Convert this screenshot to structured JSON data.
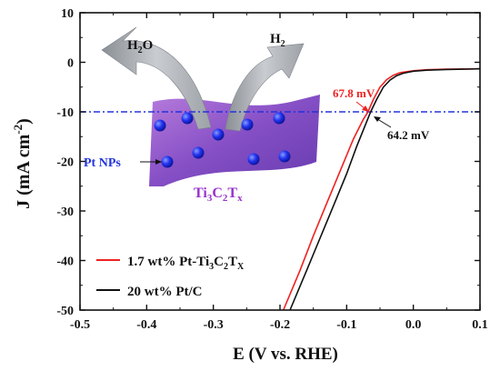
{
  "chart_data": {
    "type": "line",
    "xlabel": "E (V vs. RHE)",
    "ylabel": "J (mA cm",
    "ylabel_sup": "-2",
    "ylabel_close": ")",
    "xlim": [
      -0.5,
      0.1
    ],
    "ylim": [
      -50,
      10
    ],
    "xticks": [
      -0.5,
      -0.4,
      -0.3,
      -0.2,
      -0.1,
      0.0,
      0.1
    ],
    "xtick_labels": [
      "-0.5",
      "-0.4",
      "-0.3",
      "-0.2",
      "-0.1",
      "0.0",
      "0.1"
    ],
    "yticks": [
      10,
      0,
      -10,
      -20,
      -30,
      -40,
      -50
    ],
    "ytick_labels": [
      "10",
      "0",
      "-10",
      "-20",
      "-30",
      "-40",
      "-50"
    ],
    "reference_line": {
      "y": -10,
      "color": "#2233dd",
      "style": "dash-dot"
    },
    "series": [
      {
        "name": "1.7 wt% Pt-Ti3C2Tx",
        "color": "#ee2222",
        "x": [
          -0.195,
          -0.17,
          -0.15,
          -0.13,
          -0.11,
          -0.09,
          -0.075,
          -0.068,
          -0.06,
          -0.05,
          -0.04,
          -0.03,
          -0.02,
          0.0,
          0.02,
          0.05,
          0.08,
          0.1
        ],
        "y": [
          -50,
          -42,
          -35,
          -28.5,
          -22,
          -15.5,
          -11.5,
          -10,
          -7.5,
          -5,
          -3.5,
          -2.6,
          -2.1,
          -1.7,
          -1.5,
          -1.4,
          -1.35,
          -1.3
        ]
      },
      {
        "name": "20 wt% Pt/C",
        "color": "#111111",
        "x": [
          -0.185,
          -0.16,
          -0.14,
          -0.12,
          -0.1,
          -0.085,
          -0.07,
          -0.064,
          -0.055,
          -0.045,
          -0.035,
          -0.025,
          -0.015,
          0.0,
          0.02,
          0.05,
          0.08,
          0.1
        ],
        "y": [
          -50,
          -42,
          -35.5,
          -29,
          -22.5,
          -17,
          -12,
          -10,
          -7.5,
          -5,
          -3.6,
          -2.7,
          -2.2,
          -1.8,
          -1.6,
          -1.45,
          -1.38,
          -1.33
        ]
      }
    ],
    "legend": {
      "placement": "bottom-left",
      "entries": [
        {
          "color": "#ee2222",
          "label": "1.7 wt% Pt-Ti3C2Tx"
        },
        {
          "color": "#111111",
          "label": "20 wt% Pt/C"
        }
      ]
    },
    "annotations": {
      "red_value": "67.8 mV",
      "red_value_color": "#ee2222",
      "black_value": "64.2 mV",
      "h2o": "H",
      "h2o_sub": "2",
      "h2o_end": "O",
      "h2": "H",
      "h2_sub": "2",
      "ti3c2tx": [
        "Ti",
        "3",
        "C",
        "2",
        "T",
        "x"
      ],
      "ti3c2tx_color": "#9933cc",
      "pt_nps": "Pt NPs",
      "pt_nps_color": "#2233dd"
    },
    "grid": false
  }
}
